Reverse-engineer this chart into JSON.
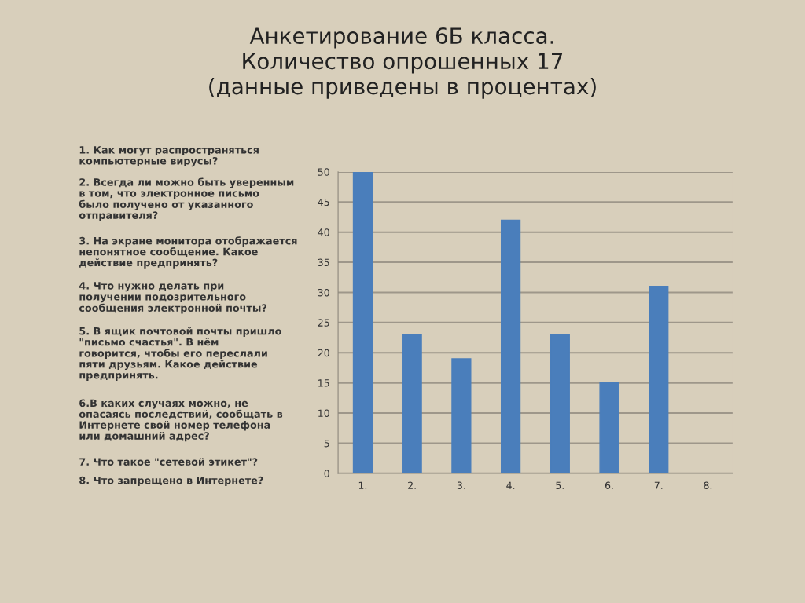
{
  "chart_data": {
    "type": "bar",
    "title": "Анкетирование 6Б класса.\nКоличество опрошенных 17\n(данные приведены в процентах)",
    "categories": [
      "1.",
      "2.",
      "3.",
      "4.",
      "5.",
      "6.",
      "7.",
      "8."
    ],
    "values": [
      50,
      23,
      19,
      42,
      23,
      15,
      31,
      0
    ],
    "color": "#4a7ebb",
    "ylim": [
      0,
      50
    ],
    "yticks": [
      0,
      5,
      10,
      15,
      20,
      25,
      30,
      35,
      40,
      45,
      50
    ],
    "grid": "y",
    "annotations": [
      "1. Как могут распространяться\nкомпьютерные вирусы?",
      "2. Всегда ли можно быть уверенным\nв том, что электронное письмо\nбыло получено от указанного\nотправителя?",
      "3. На экране монитора отображается\nнепонятное сообщение. Какое\nдействие предпринять?",
      "4. Что нужно делать при\nполучении подозрительного\nсообщения электронной почты?",
      "5. В ящик почтовой почты пришло\n\"письмо счастья\". В нём\nговорится, чтобы его переслали\nпяти друзьям. Какое действие\nпредпринять.",
      "6.В каких случаях можно, не\nопасаясь последствий, сообщать в\nИнтернете свой номер телефона\nили домашний адрес?",
      "7. Что такое \"сетевой этикет\"?",
      "8. Что запрещено в Интернете?"
    ]
  }
}
